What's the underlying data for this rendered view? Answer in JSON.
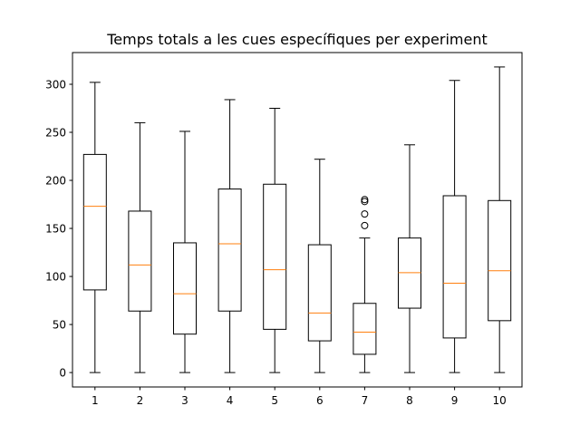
{
  "chart_data": {
    "type": "boxplot",
    "title": "Temps totals a les cues específiques per experiment",
    "xlabel": "",
    "ylabel": "",
    "ylim": [
      -15,
      333
    ],
    "yticks": [
      0,
      50,
      100,
      150,
      200,
      250,
      300
    ],
    "grid": false,
    "colors": {
      "box": "#000000",
      "median": "#ff7f0e",
      "flier": "#000000"
    },
    "boxes": [
      {
        "label": "1",
        "whisker_low": 0,
        "q1": 86,
        "median": 173,
        "q3": 227,
        "whisker_high": 302,
        "fliers": []
      },
      {
        "label": "2",
        "whisker_low": 0,
        "q1": 64,
        "median": 112,
        "q3": 168,
        "whisker_high": 260,
        "fliers": []
      },
      {
        "label": "3",
        "whisker_low": 0,
        "q1": 40,
        "median": 82,
        "q3": 135,
        "whisker_high": 251,
        "fliers": []
      },
      {
        "label": "4",
        "whisker_low": 0,
        "q1": 64,
        "median": 134,
        "q3": 191,
        "whisker_high": 284,
        "fliers": []
      },
      {
        "label": "5",
        "whisker_low": 0,
        "q1": 45,
        "median": 107,
        "q3": 196,
        "whisker_high": 275,
        "fliers": []
      },
      {
        "label": "6",
        "whisker_low": 0,
        "q1": 33,
        "median": 62,
        "q3": 133,
        "whisker_high": 222,
        "fliers": []
      },
      {
        "label": "7",
        "whisker_low": 0,
        "q1": 19,
        "median": 42,
        "q3": 72,
        "whisker_high": 140,
        "fliers": [
          153,
          165,
          178,
          180
        ]
      },
      {
        "label": "8",
        "whisker_low": 0,
        "q1": 67,
        "median": 104,
        "q3": 140,
        "whisker_high": 237,
        "fliers": []
      },
      {
        "label": "9",
        "whisker_low": 0,
        "q1": 36,
        "median": 93,
        "q3": 184,
        "whisker_high": 304,
        "fliers": []
      },
      {
        "label": "10",
        "whisker_low": 0,
        "q1": 54,
        "median": 106,
        "q3": 179,
        "whisker_high": 318,
        "fliers": []
      }
    ]
  }
}
